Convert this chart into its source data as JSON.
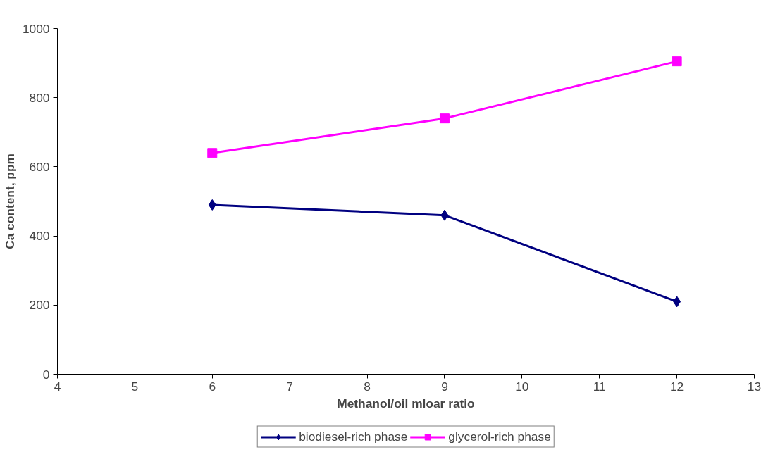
{
  "chart_data": {
    "type": "line",
    "xlabel": "Methanol/oil mloar ratio",
    "ylabel": "Ca content, ppm",
    "x": [
      6,
      9,
      12
    ],
    "series": [
      {
        "name": "biodiesel-rich phase",
        "color": "#000080",
        "values": [
          490,
          460,
          210
        ],
        "marker": "diamond"
      },
      {
        "name": "glycerol-rich phase",
        "color": "#ff00ff",
        "values": [
          640,
          740,
          905
        ],
        "marker": "square"
      }
    ],
    "xlim": [
      4,
      13
    ],
    "xticks": [
      4,
      5,
      6,
      7,
      8,
      9,
      10,
      11,
      12,
      13
    ],
    "ylim": [
      0,
      1000
    ],
    "yticks": [
      0,
      200,
      400,
      600,
      800,
      1000
    ],
    "grid": false,
    "legend": "bottom",
    "line_style": "solid"
  }
}
